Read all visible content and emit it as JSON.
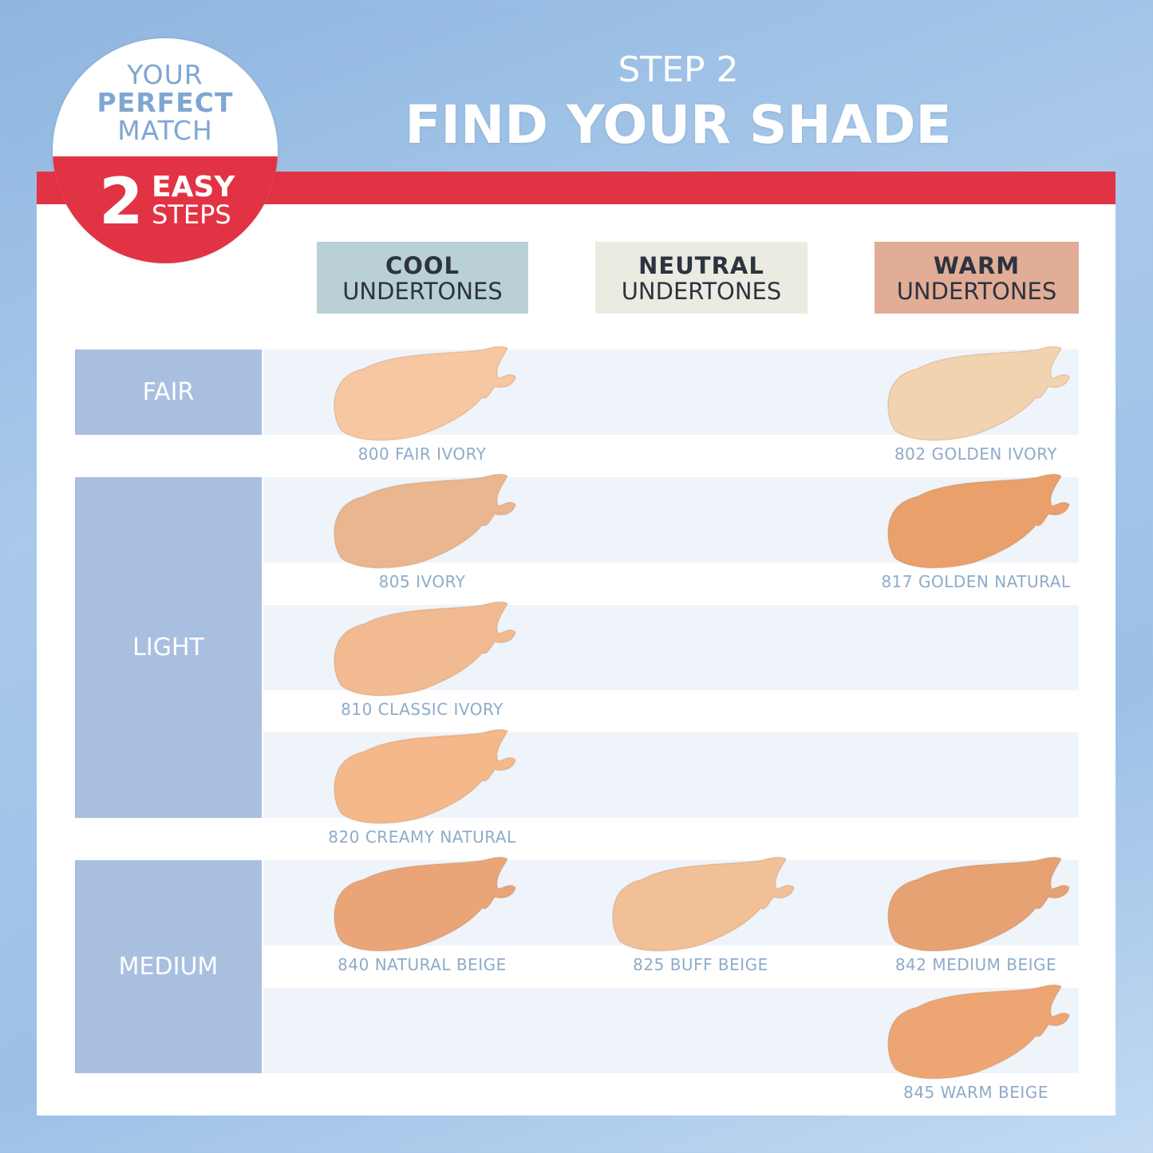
{
  "badge": {
    "line1": "YOUR",
    "line2": "PERFECT",
    "line3": "MATCH",
    "number": "2",
    "line4": "EASY",
    "line5": "STEPS"
  },
  "header": {
    "step": "STEP 2",
    "title": "FIND YOUR SHADE"
  },
  "columns": [
    {
      "bold": "COOL",
      "rest": "UNDERTONES",
      "color": "#b9d0d6"
    },
    {
      "bold": "NEUTRAL",
      "rest": "UNDERTONES",
      "color": "#ecebe1"
    },
    {
      "bold": "WARM",
      "rest": "UNDERTONES",
      "color": "#e1ad96"
    }
  ],
  "categories": [
    "FAIR",
    "LIGHT",
    "MEDIUM"
  ],
  "shades": [
    {
      "name": "800 FAIR IVORY",
      "row": 0,
      "col": 0,
      "color": "#f6c7a0"
    },
    {
      "name": "802 GOLDEN IVORY",
      "row": 0,
      "col": 2,
      "color": "#f2d3b0"
    },
    {
      "name": "805 IVORY",
      "row": 1,
      "col": 0,
      "color": "#e9b690"
    },
    {
      "name": "817 GOLDEN NATURAL",
      "row": 1,
      "col": 2,
      "color": "#e9a06a"
    },
    {
      "name": "810 CLASSIC IVORY",
      "row": 2,
      "col": 0,
      "color": "#f1ba90"
    },
    {
      "name": "820 CREAMY NATURAL",
      "row": 3,
      "col": 0,
      "color": "#f4b88a"
    },
    {
      "name": "840 NATURAL BEIGE",
      "row": 4,
      "col": 0,
      "color": "#e9a577"
    },
    {
      "name": "825 BUFF BEIGE",
      "row": 4,
      "col": 1,
      "color": "#f2c096"
    },
    {
      "name": "842 MEDIUM BEIGE",
      "row": 4,
      "col": 2,
      "color": "#e6a272"
    },
    {
      "name": "845 WARM BEIGE",
      "row": 5,
      "col": 2,
      "color": "#eda673"
    }
  ]
}
